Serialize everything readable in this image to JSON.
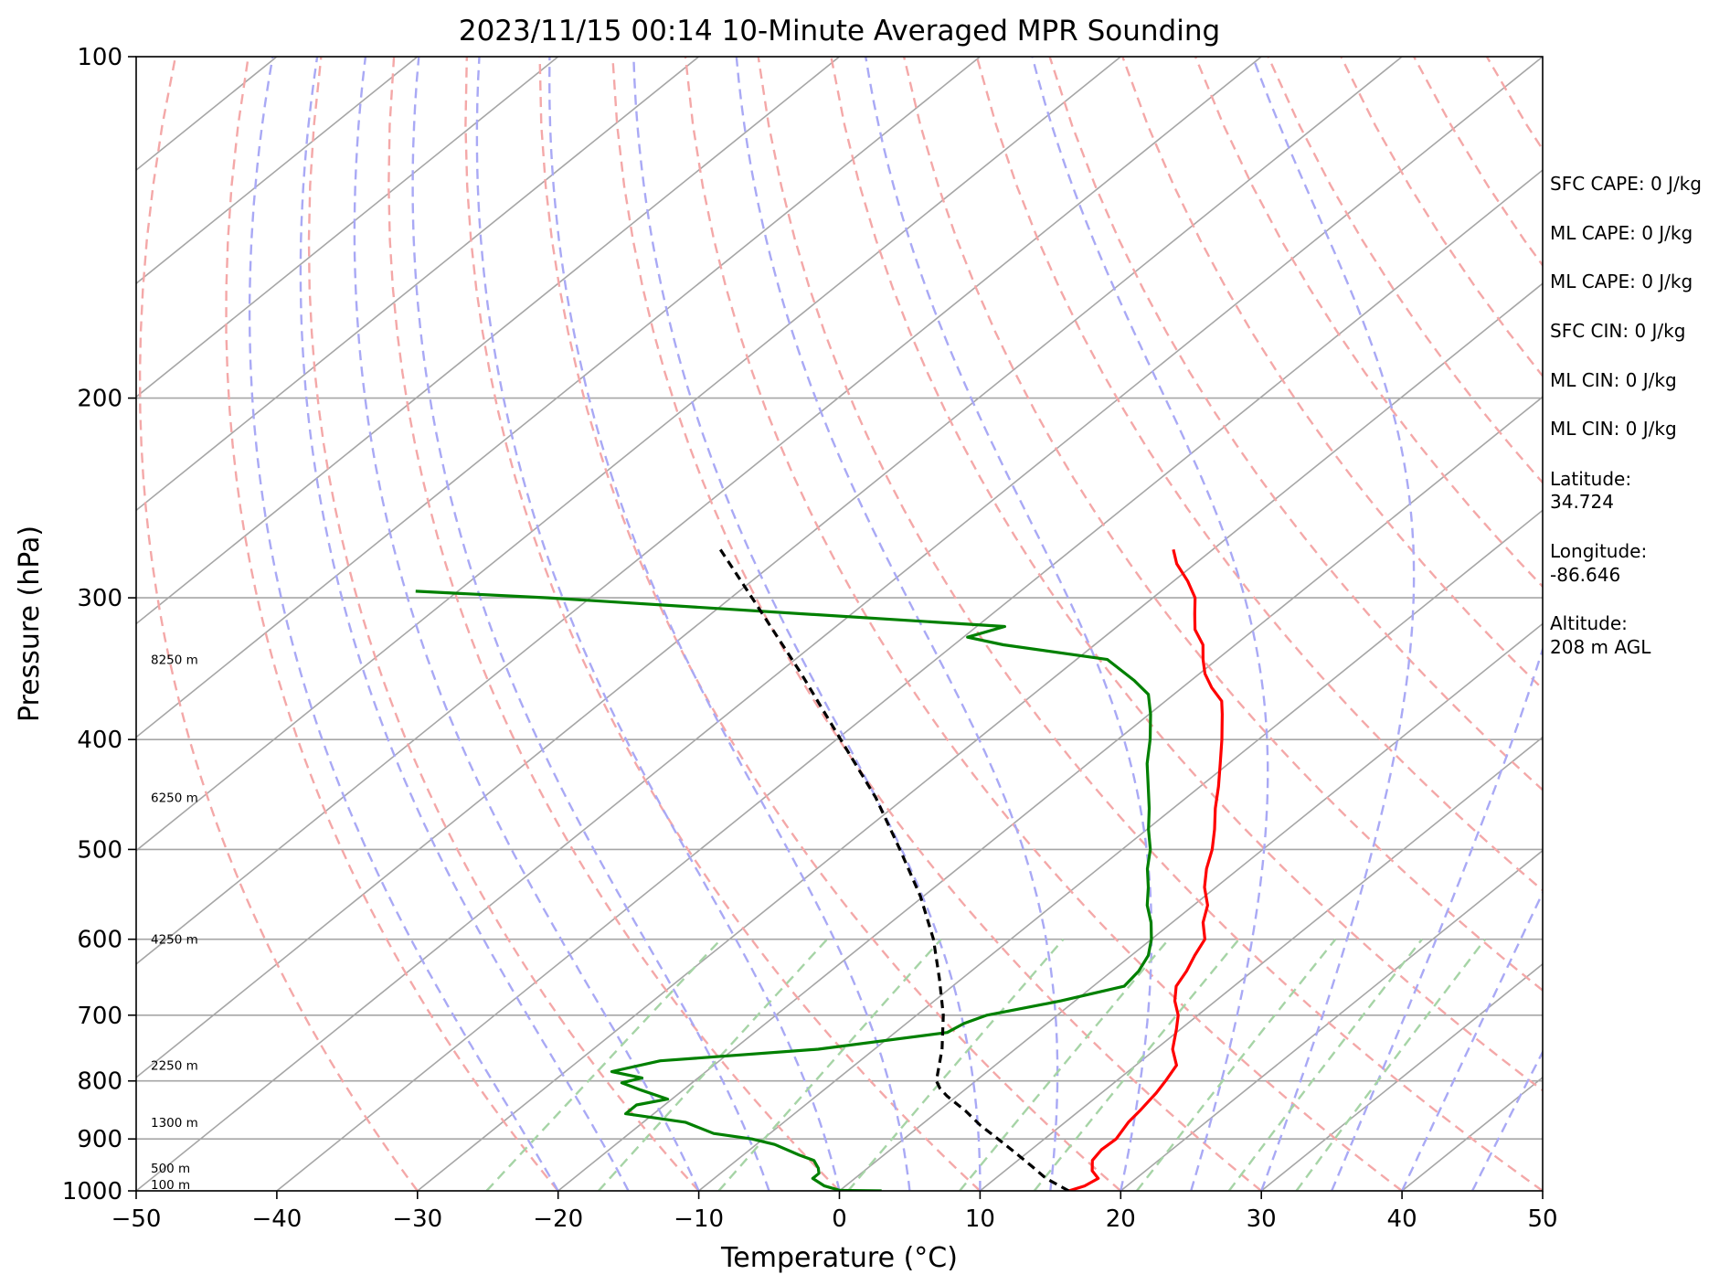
{
  "chart_data": {
    "type": "skew-t",
    "title": "2023/11/15 00:14 10-Minute Averaged MPR Sounding",
    "xlabel": "Temperature (°C)",
    "ylabel": "Pressure (hPa)",
    "xlim": [
      -50,
      50
    ],
    "ylim": [
      1000,
      100
    ],
    "y_scale": "log",
    "x_ticks": [
      -50,
      -40,
      -30,
      -20,
      -10,
      0,
      10,
      20,
      30,
      40,
      50
    ],
    "x_tick_labels": [
      "−50",
      "−40",
      "−30",
      "−20",
      "−10",
      "0",
      "10",
      "20",
      "30",
      "40",
      "50"
    ],
    "y_ticks": [
      100,
      200,
      300,
      400,
      500,
      600,
      700,
      800,
      900,
      1000
    ],
    "y_tick_labels": [
      "100",
      "200",
      "300",
      "400",
      "500",
      "600",
      "700",
      "800",
      "900",
      "1000"
    ],
    "grid": true,
    "reference_lines": {
      "isotherm_color": "#a6a6a6",
      "dry_adiabat_color": "#f4a8a8",
      "moist_adiabat_color": "#a9a9f5",
      "mixing_ratio_color": "#a6d4a6",
      "isotherm_temps": [
        -140,
        -130,
        -120,
        -110,
        -100,
        -90,
        -80,
        -70,
        -60,
        -50,
        -40,
        -30,
        -20,
        -10,
        0,
        10,
        20,
        30,
        40,
        50
      ],
      "dry_adiabat_theta_c": [
        -30,
        -20,
        -10,
        0,
        10,
        20,
        30,
        40,
        50,
        60,
        70,
        80,
        90,
        100,
        110,
        120,
        130,
        140,
        150,
        160,
        170,
        180,
        190,
        200
      ],
      "moist_adiabat_start_c": [
        -20,
        -15,
        -10,
        -5,
        0,
        5,
        10,
        15,
        20,
        25,
        30,
        35,
        40,
        45
      ],
      "mixing_ratio_g_kg": [
        0.5,
        1,
        2,
        4,
        7,
        10,
        16,
        24,
        32
      ]
    },
    "series": [
      {
        "role": "temperature",
        "color": "#ff0000",
        "points": [
          {
            "p": 1000,
            "t": 16.3
          },
          {
            "p": 990,
            "t": 17.0
          },
          {
            "p": 975,
            "t": 17.3
          },
          {
            "p": 960,
            "t": 16.2
          },
          {
            "p": 940,
            "t": 15.3
          },
          {
            "p": 920,
            "t": 15.0
          },
          {
            "p": 900,
            "t": 15.1
          },
          {
            "p": 870,
            "t": 14.5
          },
          {
            "p": 850,
            "t": 14.3
          },
          {
            "p": 835,
            "t": 14.1
          },
          {
            "p": 820,
            "t": 13.9
          },
          {
            "p": 800,
            "t": 13.5
          },
          {
            "p": 775,
            "t": 12.9
          },
          {
            "p": 750,
            "t": 11.2
          },
          {
            "p": 720,
            "t": 9.7
          },
          {
            "p": 700,
            "t": 8.6
          },
          {
            "p": 680,
            "t": 7.1
          },
          {
            "p": 660,
            "t": 5.9
          },
          {
            "p": 640,
            "t": 5.3
          },
          {
            "p": 620,
            "t": 4.5
          },
          {
            "p": 600,
            "t": 3.8
          },
          {
            "p": 580,
            "t": 2.2
          },
          {
            "p": 560,
            "t": 1.0
          },
          {
            "p": 540,
            "t": -0.8
          },
          {
            "p": 520,
            "t": -2.3
          },
          {
            "p": 500,
            "t": -3.6
          },
          {
            "p": 480,
            "t": -5.2
          },
          {
            "p": 460,
            "t": -7.0
          },
          {
            "p": 440,
            "t": -8.7
          },
          {
            "p": 420,
            "t": -10.6
          },
          {
            "p": 400,
            "t": -12.6
          },
          {
            "p": 380,
            "t": -14.8
          },
          {
            "p": 370,
            "t": -16.0
          },
          {
            "p": 360,
            "t": -17.9
          },
          {
            "p": 350,
            "t": -19.6
          },
          {
            "p": 340,
            "t": -21.0
          },
          {
            "p": 330,
            "t": -22.3
          },
          {
            "p": 320,
            "t": -24.2
          },
          {
            "p": 310,
            "t": -25.6
          },
          {
            "p": 300,
            "t": -27.0
          },
          {
            "p": 290,
            "t": -29.0
          },
          {
            "p": 280,
            "t": -31.3
          },
          {
            "p": 272,
            "t": -32.8
          }
        ]
      },
      {
        "role": "dewpoint",
        "color": "#008000",
        "points": [
          {
            "p": 1000,
            "t": 3.0
          },
          {
            "p": 999,
            "t": 0.0
          },
          {
            "p": 990,
            "t": -1.5
          },
          {
            "p": 975,
            "t": -3.0
          },
          {
            "p": 965,
            "t": -3.0
          },
          {
            "p": 955,
            "t": -3.5
          },
          {
            "p": 940,
            "t": -4.5
          },
          {
            "p": 930,
            "t": -6.0
          },
          {
            "p": 910,
            "t": -8.7
          },
          {
            "p": 900,
            "t": -10.8
          },
          {
            "p": 890,
            "t": -14.0
          },
          {
            "p": 870,
            "t": -17.0
          },
          {
            "p": 855,
            "t": -22.0
          },
          {
            "p": 840,
            "t": -22.0
          },
          {
            "p": 830,
            "t": -20.3
          },
          {
            "p": 815,
            "t": -23.0
          },
          {
            "p": 803,
            "t": -25.0
          },
          {
            "p": 795,
            "t": -24.0
          },
          {
            "p": 785,
            "t": -26.7
          },
          {
            "p": 768,
            "t": -24.2
          },
          {
            "p": 750,
            "t": -14.0
          },
          {
            "p": 725,
            "t": -6.3
          },
          {
            "p": 712,
            "t": -5.9
          },
          {
            "p": 700,
            "t": -5.0
          },
          {
            "p": 680,
            "t": -1.0
          },
          {
            "p": 660,
            "t": 2.2
          },
          {
            "p": 640,
            "t": 1.9
          },
          {
            "p": 620,
            "t": 1.2
          },
          {
            "p": 600,
            "t": 0.0
          },
          {
            "p": 580,
            "t": -1.5
          },
          {
            "p": 560,
            "t": -3.3
          },
          {
            "p": 540,
            "t": -4.8
          },
          {
            "p": 520,
            "t": -6.5
          },
          {
            "p": 500,
            "t": -8.0
          },
          {
            "p": 480,
            "t": -9.9
          },
          {
            "p": 460,
            "t": -11.7
          },
          {
            "p": 440,
            "t": -13.7
          },
          {
            "p": 420,
            "t": -15.8
          },
          {
            "p": 400,
            "t": -17.7
          },
          {
            "p": 380,
            "t": -19.9
          },
          {
            "p": 365,
            "t": -21.8
          },
          {
            "p": 355,
            "t": -24.0
          },
          {
            "p": 340,
            "t": -27.8
          },
          {
            "p": 330,
            "t": -36.5
          },
          {
            "p": 325,
            "t": -39.7
          },
          {
            "p": 318,
            "t": -38.0
          },
          {
            "p": 300,
            "t": -73.0
          },
          {
            "p": 296,
            "t": -83.0
          }
        ]
      },
      {
        "role": "parcel",
        "color": "#000000",
        "style": "dashed",
        "points": [
          {
            "p": 1000,
            "t": 16.3
          },
          {
            "p": 975,
            "t": 13.6
          },
          {
            "p": 950,
            "t": 11.4
          },
          {
            "p": 925,
            "t": 9.1
          },
          {
            "p": 900,
            "t": 6.7
          },
          {
            "p": 875,
            "t": 4.2
          },
          {
            "p": 850,
            "t": 1.9
          },
          {
            "p": 825,
            "t": -0.7
          },
          {
            "p": 812,
            "t": -1.9
          },
          {
            "p": 800,
            "t": -2.8
          },
          {
            "p": 750,
            "t": -5.2
          },
          {
            "p": 700,
            "t": -8.1
          },
          {
            "p": 650,
            "t": -11.6
          },
          {
            "p": 600,
            "t": -15.5
          },
          {
            "p": 550,
            "t": -20.2
          },
          {
            "p": 500,
            "t": -25.8
          },
          {
            "p": 450,
            "t": -32.1
          },
          {
            "p": 400,
            "t": -39.7
          },
          {
            "p": 350,
            "t": -48.3
          },
          {
            "p": 300,
            "t": -58.5
          },
          {
            "p": 272,
            "t": -65.0
          }
        ]
      }
    ],
    "height_labels": [
      {
        "p": 987,
        "text": "100 m"
      },
      {
        "p": 955,
        "text": "500 m"
      },
      {
        "p": 870,
        "text": "1300 m"
      },
      {
        "p": 775,
        "text": "2250 m"
      },
      {
        "p": 600,
        "text": "4250 m"
      },
      {
        "p": 450,
        "text": "6250 m"
      },
      {
        "p": 340,
        "text": "8250 m"
      }
    ]
  },
  "side_panel": [
    {
      "id": "sfc-cape",
      "text": "SFC CAPE: 0 J/kg"
    },
    {
      "id": "ml-cape-1",
      "text": "ML CAPE: 0 J/kg"
    },
    {
      "id": "ml-cape-2",
      "text": "ML CAPE: 0 J/kg"
    },
    {
      "id": "sfc-cin",
      "text": "SFC CIN: 0 J/kg"
    },
    {
      "id": "ml-cin-1",
      "text": "ML CIN: 0 J/kg"
    },
    {
      "id": "ml-cin-2",
      "text": "ML CIN: 0 J/kg"
    },
    {
      "id": "latitude-label",
      "text": "Latitude:"
    },
    {
      "id": "latitude-value",
      "text": "34.724"
    },
    {
      "id": "longitude-label",
      "text": "Longitude:"
    },
    {
      "id": "longitude-value",
      "text": "-86.646"
    },
    {
      "id": "altitude-label",
      "text": "Altitude:"
    },
    {
      "id": "altitude-value",
      "text": "208 m AGL"
    }
  ]
}
